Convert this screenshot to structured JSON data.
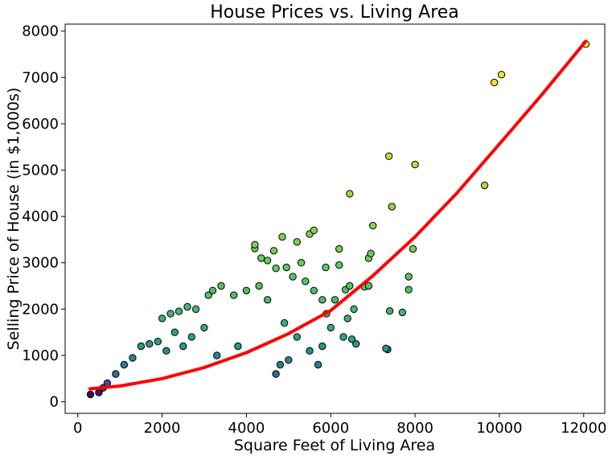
{
  "chart_data": {
    "type": "scatter",
    "title": "House Prices vs. Living Area",
    "xlabel": "Square Feet of Living Area",
    "ylabel": "Selling Price of House (in $1,000s)",
    "xlim": [
      -300,
      12500
    ],
    "ylim": [
      -250,
      8150
    ],
    "xticks": [
      0,
      2000,
      4000,
      6000,
      8000,
      10000,
      12000
    ],
    "yticks": [
      0,
      1000,
      2000,
      3000,
      4000,
      5000,
      6000,
      7000,
      8000
    ],
    "grid": false,
    "legend": "none",
    "colormap": "viridis",
    "marker_edge_color": "#000000",
    "trend_line": {
      "color": "#ff0000",
      "x": [
        290,
        1000,
        2000,
        3000,
        4000,
        5000,
        6000,
        7000,
        8000,
        9000,
        10000,
        11000,
        12050
      ],
      "y": [
        280,
        340,
        500,
        740,
        1060,
        1470,
        1970,
        2720,
        3560,
        4510,
        5560,
        6620,
        7780
      ]
    },
    "series": [
      {
        "points": [
          [
            12050,
            7720
          ],
          [
            10050,
            7060
          ],
          [
            9880,
            6890
          ],
          [
            9650,
            4670
          ],
          [
            8000,
            5120
          ],
          [
            7380,
            5300
          ],
          [
            7450,
            4210
          ],
          [
            6450,
            4490
          ],
          [
            7000,
            3800
          ],
          [
            7950,
            3300
          ],
          [
            7850,
            2700
          ],
          [
            7850,
            2420
          ],
          [
            7700,
            1930
          ],
          [
            7400,
            1960
          ],
          [
            7350,
            1130
          ],
          [
            7310,
            1150
          ],
          [
            6950,
            3200
          ],
          [
            6900,
            3100
          ],
          [
            6200,
            3300
          ],
          [
            6200,
            2950
          ],
          [
            6900,
            2500
          ],
          [
            6800,
            2480
          ],
          [
            6450,
            2500
          ],
          [
            6350,
            2420
          ],
          [
            6100,
            2200
          ],
          [
            6550,
            2000
          ],
          [
            6400,
            1800
          ],
          [
            6500,
            1350
          ],
          [
            6600,
            1250
          ],
          [
            6300,
            1400
          ],
          [
            5880,
            2900
          ],
          [
            5600,
            3700
          ],
          [
            5500,
            3620
          ],
          [
            5200,
            3450
          ],
          [
            4850,
            3560
          ],
          [
            4650,
            3260
          ],
          [
            4350,
            3100
          ],
          [
            4200,
            3390
          ],
          [
            4200,
            3310
          ],
          [
            4500,
            3050
          ],
          [
            4700,
            2880
          ],
          [
            4950,
            2900
          ],
          [
            5300,
            3000
          ],
          [
            5100,
            2700
          ],
          [
            5400,
            2600
          ],
          [
            5600,
            2400
          ],
          [
            5800,
            2200
          ],
          [
            5900,
            1900
          ],
          [
            6000,
            1600
          ],
          [
            5800,
            1200
          ],
          [
            5700,
            800
          ],
          [
            5500,
            1100
          ],
          [
            5200,
            1400
          ],
          [
            5000,
            900
          ],
          [
            4700,
            600
          ],
          [
            4500,
            2200
          ],
          [
            4300,
            2500
          ],
          [
            4000,
            2400
          ],
          [
            3700,
            2300
          ],
          [
            3400,
            2500
          ],
          [
            3200,
            2400
          ],
          [
            3100,
            2300
          ],
          [
            2800,
            2000
          ],
          [
            2600,
            2050
          ],
          [
            2400,
            1950
          ],
          [
            2200,
            1900
          ],
          [
            2000,
            1800
          ],
          [
            4900,
            1700
          ],
          [
            4800,
            800
          ],
          [
            3800,
            1200
          ],
          [
            3300,
            1000
          ],
          [
            3000,
            1600
          ],
          [
            2700,
            1400
          ],
          [
            2500,
            1200
          ],
          [
            2300,
            1500
          ],
          [
            2100,
            1100
          ],
          [
            1900,
            1300
          ],
          [
            1700,
            1250
          ],
          [
            1500,
            1200
          ],
          [
            1300,
            950
          ],
          [
            1100,
            800
          ],
          [
            900,
            600
          ],
          [
            700,
            400
          ],
          [
            600,
            300
          ],
          [
            500,
            200
          ],
          [
            300,
            160
          ]
        ]
      }
    ]
  }
}
